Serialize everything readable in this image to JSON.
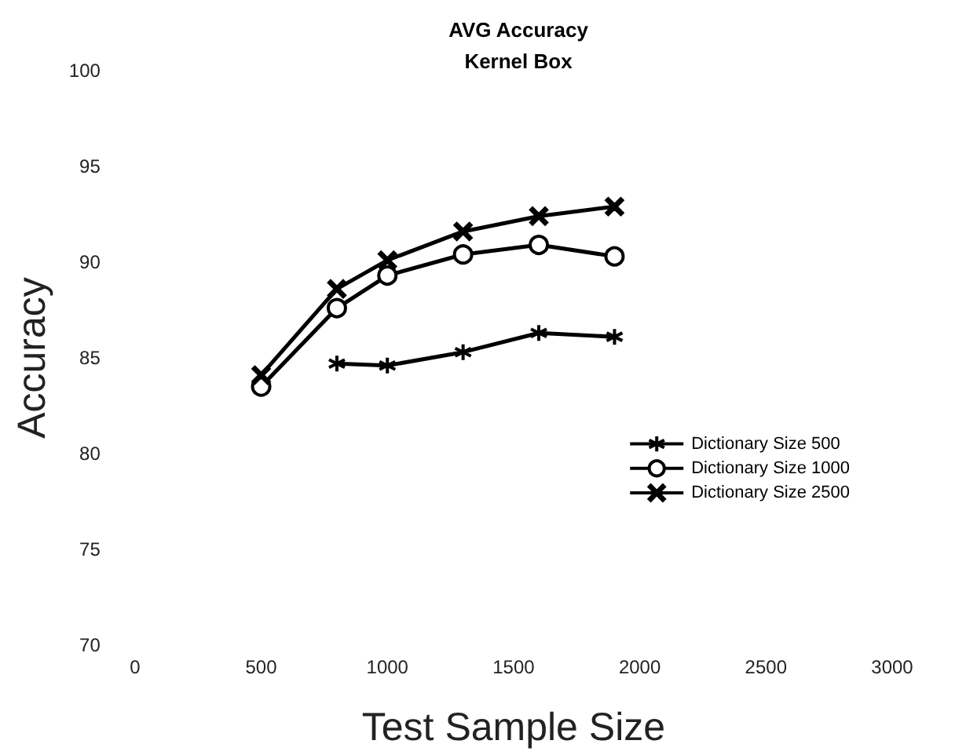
{
  "chart_data": {
    "type": "line",
    "title": "AVG Accuracy\nKernel Box",
    "xlabel": "Test Sample Size",
    "ylabel": "Accuracy",
    "x": [
      500,
      800,
      1000,
      1300,
      1600,
      1900
    ],
    "series": [
      {
        "name": "Dictionary Size 500",
        "color": "#000000",
        "marker": "star",
        "values": [
          null,
          84.7,
          84.6,
          85.3,
          86.3,
          86.1
        ]
      },
      {
        "name": "Dictionary Size 1000",
        "color": "#000000",
        "marker": "circle",
        "values": [
          83.5,
          87.6,
          89.3,
          90.4,
          90.9,
          90.3
        ]
      },
      {
        "name": "Dictionary Size 2500",
        "color": "#000000",
        "marker": "cross",
        "values": [
          84.1,
          88.6,
          90.1,
          91.6,
          92.4,
          92.9
        ]
      }
    ],
    "xlim": [
      0,
      3000
    ],
    "xticks": [
      0,
      500,
      1000,
      1500,
      2000,
      2500,
      3000
    ],
    "ylim": [
      70,
      100
    ],
    "yticks": [
      70,
      75,
      80,
      85,
      90,
      95,
      100
    ],
    "grid": false,
    "legend": "right",
    "line_style": "solid"
  }
}
